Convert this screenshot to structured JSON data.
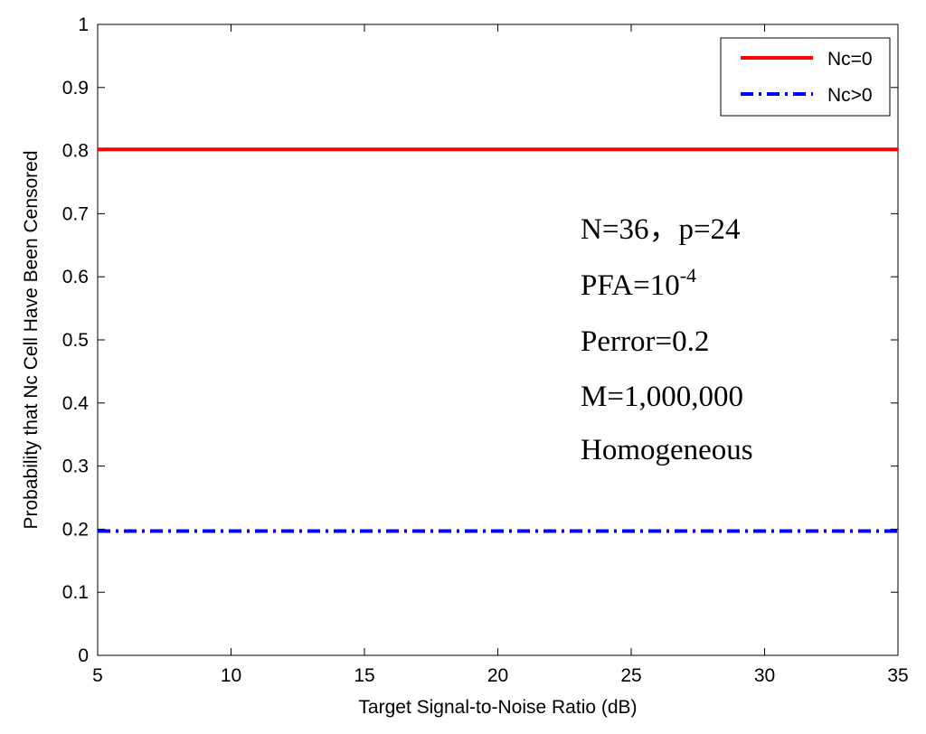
{
  "chart_data": {
    "type": "line",
    "title": "",
    "xlabel": "Target Signal-to-Noise Ratio (dB)",
    "ylabel": "Probability that Nc Cell Have Been Censored",
    "xlim": [
      5,
      35
    ],
    "ylim": [
      0,
      1
    ],
    "xticks": [
      5,
      10,
      15,
      20,
      25,
      30,
      35
    ],
    "yticks": [
      0,
      0.1,
      0.2,
      0.3,
      0.4,
      0.5,
      0.6,
      0.7,
      0.8,
      0.9,
      1
    ],
    "x_tick_labels": [
      "5",
      "10",
      "15",
      "20",
      "25",
      "30",
      "35"
    ],
    "y_tick_labels": [
      "0",
      "0.1",
      "0.2",
      "0.3",
      "0.4",
      "0.5",
      "0.6",
      "0.7",
      "0.8",
      "0.9",
      "1"
    ],
    "grid": false,
    "legend_position": "top-right",
    "series": [
      {
        "name": "Nc=0",
        "x": [
          5,
          35
        ],
        "y": [
          0.802,
          0.802
        ],
        "color": "#ff0000",
        "style": "solid"
      },
      {
        "name": "Nc>0",
        "x": [
          5,
          35
        ],
        "y": [
          0.197,
          0.197
        ],
        "color": "#0000ff",
        "style": "dash-dot"
      }
    ],
    "annotations": [
      {
        "text": "N=36，p=24"
      },
      {
        "text": "PFA=10",
        "superscript": "-4"
      },
      {
        "text": "Perror=0.2"
      },
      {
        "text": "M=1,000,000"
      },
      {
        "text": "Homogeneous"
      }
    ]
  }
}
